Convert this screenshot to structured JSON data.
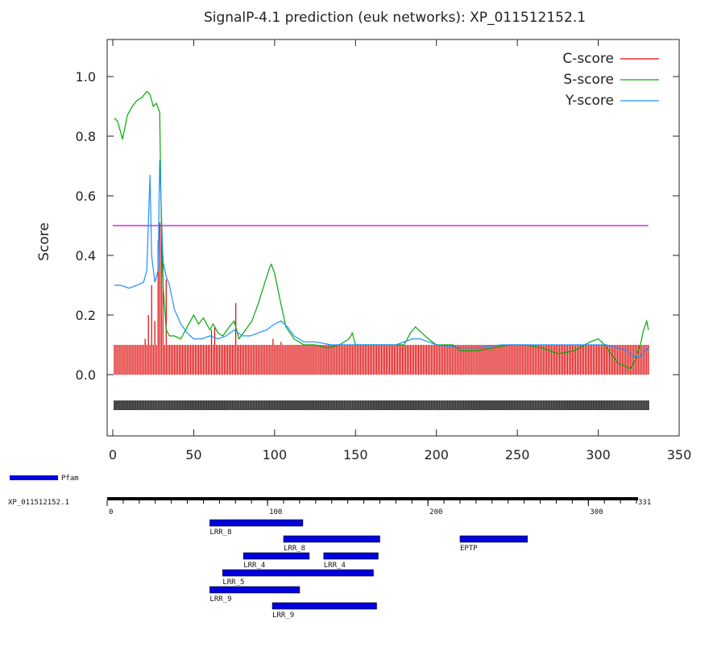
{
  "chart_data": {
    "type": "line",
    "title": "SignalP-4.1 prediction (euk networks): XP_011512152.1",
    "xlabel": "",
    "ylabel": "Score",
    "xlim": [
      0,
      350
    ],
    "ylim": [
      -0.2,
      1.1
    ],
    "x_ticks": [
      "0",
      "50",
      "100",
      "150",
      "200",
      "250",
      "300",
      "350"
    ],
    "y_ticks": [
      "0.0",
      "0.2",
      "0.4",
      "0.6",
      "0.8",
      "1.0"
    ],
    "threshold": 0.5,
    "threshold_color": "#cc00cc",
    "sequence_length": 331,
    "legend_position": "top-right",
    "series": [
      {
        "name": "C-score",
        "style": "impulses",
        "color": "#dd0000",
        "baseline": 0.1,
        "peaks": [
          [
            20,
            0.12
          ],
          [
            22,
            0.2
          ],
          [
            24,
            0.3
          ],
          [
            26,
            0.18
          ],
          [
            28,
            0.45
          ],
          [
            29,
            0.51
          ],
          [
            30,
            0.5
          ],
          [
            31,
            0.4
          ],
          [
            33,
            0.32
          ],
          [
            61,
            0.15
          ],
          [
            63,
            0.16
          ],
          [
            76,
            0.24
          ],
          [
            99,
            0.12
          ],
          [
            104,
            0.11
          ]
        ]
      },
      {
        "name": "S-score",
        "style": "line",
        "color": "#00aa00",
        "points": [
          [
            1,
            0.86
          ],
          [
            3,
            0.85
          ],
          [
            6,
            0.79
          ],
          [
            9,
            0.87
          ],
          [
            12,
            0.9
          ],
          [
            15,
            0.92
          ],
          [
            18,
            0.93
          ],
          [
            21,
            0.95
          ],
          [
            23,
            0.94
          ],
          [
            25,
            0.9
          ],
          [
            27,
            0.91
          ],
          [
            29,
            0.88
          ],
          [
            30,
            0.5
          ],
          [
            31,
            0.3
          ],
          [
            33,
            0.15
          ],
          [
            35,
            0.13
          ],
          [
            38,
            0.13
          ],
          [
            42,
            0.12
          ],
          [
            46,
            0.16
          ],
          [
            50,
            0.2
          ],
          [
            53,
            0.17
          ],
          [
            56,
            0.19
          ],
          [
            60,
            0.15
          ],
          [
            62,
            0.17
          ],
          [
            65,
            0.14
          ],
          [
            68,
            0.13
          ],
          [
            72,
            0.16
          ],
          [
            75,
            0.18
          ],
          [
            78,
            0.12
          ],
          [
            82,
            0.15
          ],
          [
            86,
            0.18
          ],
          [
            90,
            0.24
          ],
          [
            94,
            0.31
          ],
          [
            97,
            0.36
          ],
          [
            98,
            0.37
          ],
          [
            100,
            0.34
          ],
          [
            103,
            0.26
          ],
          [
            107,
            0.16
          ],
          [
            112,
            0.12
          ],
          [
            118,
            0.1
          ],
          [
            125,
            0.1
          ],
          [
            132,
            0.09
          ],
          [
            140,
            0.1
          ],
          [
            146,
            0.12
          ],
          [
            148,
            0.14
          ],
          [
            150,
            0.1
          ],
          [
            160,
            0.1
          ],
          [
            170,
            0.1
          ],
          [
            180,
            0.1
          ],
          [
            184,
            0.14
          ],
          [
            187,
            0.16
          ],
          [
            191,
            0.14
          ],
          [
            195,
            0.12
          ],
          [
            200,
            0.1
          ],
          [
            210,
            0.1
          ],
          [
            215,
            0.08
          ],
          [
            225,
            0.08
          ],
          [
            235,
            0.09
          ],
          [
            245,
            0.1
          ],
          [
            255,
            0.1
          ],
          [
            265,
            0.09
          ],
          [
            275,
            0.07
          ],
          [
            285,
            0.08
          ],
          [
            295,
            0.11
          ],
          [
            300,
            0.12
          ],
          [
            304,
            0.1
          ],
          [
            308,
            0.07
          ],
          [
            312,
            0.04
          ],
          [
            316,
            0.03
          ],
          [
            320,
            0.02
          ],
          [
            323,
            0.05
          ],
          [
            326,
            0.1
          ],
          [
            328,
            0.15
          ],
          [
            330,
            0.18
          ],
          [
            331,
            0.15
          ]
        ]
      },
      {
        "name": "Y-score",
        "style": "line",
        "color": "#1e90ff",
        "points": [
          [
            1,
            0.3
          ],
          [
            5,
            0.3
          ],
          [
            10,
            0.29
          ],
          [
            15,
            0.3
          ],
          [
            19,
            0.31
          ],
          [
            21,
            0.35
          ],
          [
            23,
            0.67
          ],
          [
            24,
            0.4
          ],
          [
            26,
            0.31
          ],
          [
            28,
            0.35
          ],
          [
            29,
            0.72
          ],
          [
            30,
            0.55
          ],
          [
            31,
            0.38
          ],
          [
            33,
            0.33
          ],
          [
            35,
            0.3
          ],
          [
            38,
            0.22
          ],
          [
            42,
            0.17
          ],
          [
            46,
            0.14
          ],
          [
            50,
            0.12
          ],
          [
            55,
            0.12
          ],
          [
            60,
            0.13
          ],
          [
            65,
            0.12
          ],
          [
            70,
            0.13
          ],
          [
            75,
            0.15
          ],
          [
            80,
            0.13
          ],
          [
            85,
            0.13
          ],
          [
            90,
            0.14
          ],
          [
            95,
            0.15
          ],
          [
            100,
            0.17
          ],
          [
            104,
            0.18
          ],
          [
            108,
            0.16
          ],
          [
            112,
            0.13
          ],
          [
            118,
            0.11
          ],
          [
            125,
            0.11
          ],
          [
            135,
            0.1
          ],
          [
            145,
            0.1
          ],
          [
            160,
            0.1
          ],
          [
            175,
            0.1
          ],
          [
            185,
            0.12
          ],
          [
            190,
            0.12
          ],
          [
            195,
            0.11
          ],
          [
            200,
            0.1
          ],
          [
            215,
            0.09
          ],
          [
            225,
            0.09
          ],
          [
            240,
            0.1
          ],
          [
            255,
            0.1
          ],
          [
            270,
            0.1
          ],
          [
            285,
            0.1
          ],
          [
            295,
            0.1
          ],
          [
            305,
            0.1
          ],
          [
            312,
            0.09
          ],
          [
            318,
            0.08
          ],
          [
            322,
            0.06
          ],
          [
            326,
            0.06
          ],
          [
            330,
            0.09
          ],
          [
            331,
            0.08
          ]
        ]
      }
    ]
  },
  "pfam": {
    "legend_label": "Pfam",
    "legend_color": "#0000dd",
    "sequence_name": "XP_011512152.1",
    "length_label": "331",
    "ruler_ticks": [
      {
        "pos": 0,
        "label": "0"
      },
      {
        "pos": 100,
        "label": "100"
      },
      {
        "pos": 200,
        "label": "200"
      },
      {
        "pos": 300,
        "label": "300"
      }
    ],
    "domains": [
      {
        "name": "LRR_8",
        "start": 64,
        "end": 122,
        "row": 0
      },
      {
        "name": "LRR_8",
        "start": 110,
        "end": 170,
        "row": 1
      },
      {
        "name": "EPTP",
        "start": 220,
        "end": 262,
        "row": 1
      },
      {
        "name": "LRR_4",
        "start": 85,
        "end": 126,
        "row": 2
      },
      {
        "name": "LRR_4",
        "start": 135,
        "end": 169,
        "row": 2
      },
      {
        "name": "LRR_5",
        "start": 72,
        "end": 166,
        "row": 3
      },
      {
        "name": "LRR_9",
        "start": 64,
        "end": 120,
        "row": 4
      },
      {
        "name": "LRR_9",
        "start": 103,
        "end": 168,
        "row": 5
      }
    ]
  }
}
